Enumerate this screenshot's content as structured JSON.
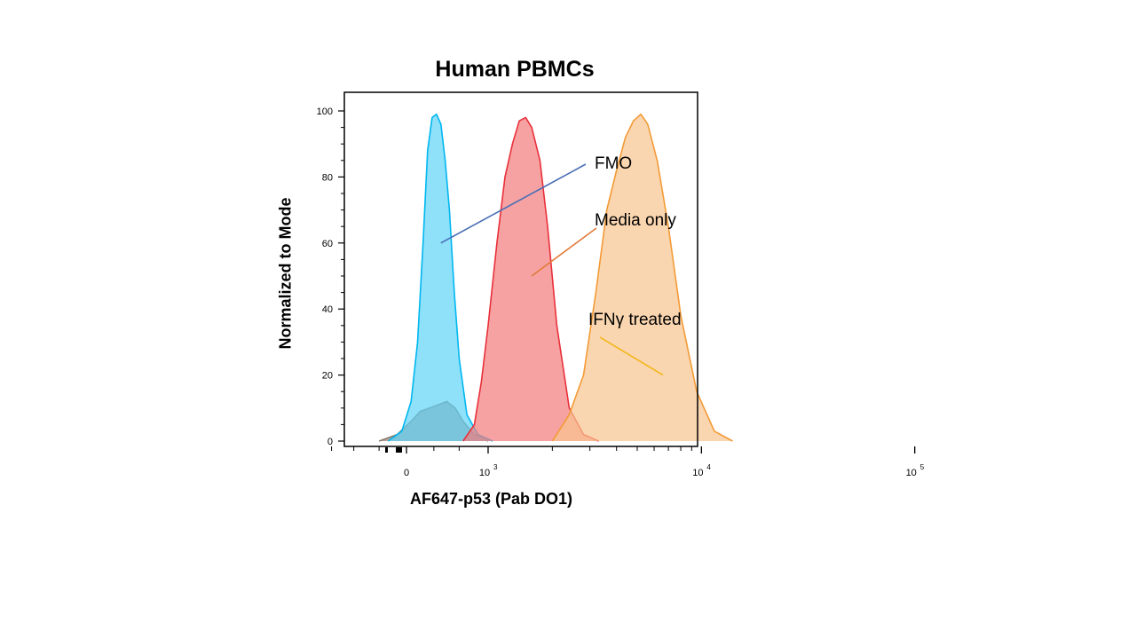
{
  "chart_data": {
    "type": "area",
    "title": "Human PBMCs",
    "xlabel": "AF647-p53 (Pab DO1)",
    "ylabel": "Normalized to Mode",
    "x_scale": "biexponential",
    "ylim": [
      0,
      100
    ],
    "y_ticks": [
      "0",
      "20",
      "40",
      "60",
      "80",
      "100"
    ],
    "x_ticks": [
      {
        "value": 0,
        "base": "0",
        "exp": ""
      },
      {
        "value": 1000,
        "base": "10",
        "exp": "3"
      },
      {
        "value": 10000,
        "base": "10",
        "exp": "4"
      },
      {
        "value": 100000,
        "base": "10",
        "exp": "5"
      }
    ],
    "series": [
      {
        "name": "FMO",
        "color": "#00b7f0",
        "fill": "#5fd3f7",
        "x": [
          -200,
          -50,
          50,
          120,
          180,
          230,
          280,
          330,
          380,
          430,
          480,
          540,
          600,
          700,
          850,
          1050
        ],
        "y": [
          0,
          3,
          12,
          30,
          60,
          88,
          98,
          99,
          96,
          85,
          70,
          45,
          25,
          8,
          2,
          0
        ]
      },
      {
        "name": "Media only",
        "color": "#e8303a",
        "fill": "#f47a7a",
        "x": [
          650,
          800,
          900,
          1000,
          1100,
          1200,
          1300,
          1400,
          1500,
          1600,
          1750,
          1900,
          2100,
          2400,
          2800,
          3300
        ],
        "y": [
          0,
          5,
          18,
          35,
          60,
          80,
          90,
          97,
          98,
          95,
          85,
          65,
          35,
          10,
          2,
          0
        ]
      },
      {
        "name": "IFNγ treated",
        "color": "#f39a36",
        "fill": "#f8c48e",
        "x": [
          2000,
          2400,
          2800,
          3200,
          3600,
          4000,
          4400,
          4800,
          5200,
          5600,
          6200,
          7000,
          8000,
          9500,
          11500,
          14000
        ],
        "y": [
          0,
          8,
          20,
          45,
          70,
          82,
          92,
          97,
          99,
          96,
          85,
          65,
          38,
          15,
          3,
          0
        ]
      },
      {
        "name": "",
        "color": "#8a7a6a",
        "fill": "#a5847e",
        "x": [
          -300,
          -100,
          50,
          150,
          250,
          350,
          450,
          550,
          650,
          800,
          1000
        ],
        "y": [
          0,
          2,
          6,
          9,
          10,
          11,
          12,
          10,
          6,
          2,
          0
        ]
      }
    ],
    "annotations": [
      {
        "text": "FMO",
        "series": "FMO",
        "line_color": "#4a6fb5"
      },
      {
        "text": "Media only",
        "series": "Media only",
        "line_color": "#e07b39"
      },
      {
        "text": "IFNγ treated",
        "series": "IFNγ treated",
        "line_color": "#f2b619"
      }
    ]
  }
}
